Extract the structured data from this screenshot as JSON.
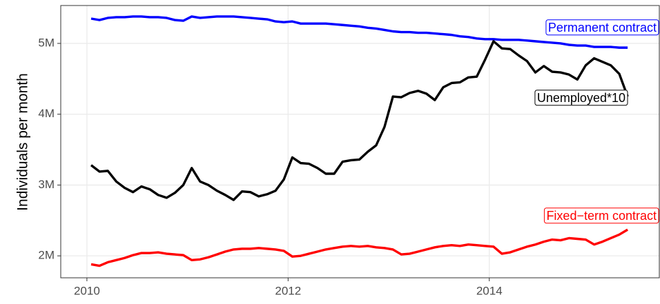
{
  "chart_data": {
    "type": "line",
    "y_label": "Individuals per month",
    "x": [
      2010.042,
      2010.125,
      2010.208,
      2010.292,
      2010.375,
      2010.458,
      2010.542,
      2010.625,
      2010.708,
      2010.792,
      2010.875,
      2010.958,
      2011.042,
      2011.125,
      2011.208,
      2011.292,
      2011.375,
      2011.458,
      2011.542,
      2011.625,
      2011.708,
      2011.792,
      2011.875,
      2011.958,
      2012.042,
      2012.125,
      2012.208,
      2012.292,
      2012.375,
      2012.458,
      2012.542,
      2012.625,
      2012.708,
      2012.792,
      2012.875,
      2012.958,
      2013.042,
      2013.125,
      2013.208,
      2013.292,
      2013.375,
      2013.458,
      2013.542,
      2013.625,
      2013.708,
      2013.792,
      2013.875,
      2013.958,
      2014.042,
      2014.125,
      2014.208,
      2014.292,
      2014.375,
      2014.458,
      2014.542,
      2014.625,
      2014.708,
      2014.792,
      2014.875,
      2014.958,
      2015.042,
      2015.125,
      2015.208,
      2015.292,
      2015.375
    ],
    "series": [
      {
        "name": "Permanent contract",
        "color": "#0000ff",
        "values": [
          5350000.0,
          5330000.0,
          5360000.0,
          5370000.0,
          5370000.0,
          5380000.0,
          5380000.0,
          5370000.0,
          5370000.0,
          5360000.0,
          5330000.0,
          5320000.0,
          5380000.0,
          5360000.0,
          5370000.0,
          5380000.0,
          5380000.0,
          5380000.0,
          5370000.0,
          5360000.0,
          5350000.0,
          5340000.0,
          5310000.0,
          5300000.0,
          5310000.0,
          5280000.0,
          5280000.0,
          5280000.0,
          5280000.0,
          5270000.0,
          5260000.0,
          5250000.0,
          5240000.0,
          5220000.0,
          5210000.0,
          5190000.0,
          5170000.0,
          5160000.0,
          5160000.0,
          5150000.0,
          5150000.0,
          5140000.0,
          5130000.0,
          5120000.0,
          5100000.0,
          5090000.0,
          5070000.0,
          5060000.0,
          5060000.0,
          5050000.0,
          5050000.0,
          5050000.0,
          5040000.0,
          5030000.0,
          5020000.0,
          5010000.0,
          5000000.0,
          4980000.0,
          4970000.0,
          4970000.0,
          4950000.0,
          4950000.0,
          4950000.0,
          4940000.0,
          4940000.0
        ]
      },
      {
        "name": "Unemployed*10",
        "color": "#000000",
        "values": [
          3280000.0,
          3190000.0,
          3200000.0,
          3050000.0,
          2960000.0,
          2900000.0,
          2980000.0,
          2940000.0,
          2860000.0,
          2820000.0,
          2890000.0,
          3000000.0,
          3240000.0,
          3050000.0,
          3000000.0,
          2920000.0,
          2860000.0,
          2790000.0,
          2910000.0,
          2900000.0,
          2840000.0,
          2870000.0,
          2920000.0,
          3080000.0,
          3390000.0,
          3310000.0,
          3300000.0,
          3240000.0,
          3160000.0,
          3160000.0,
          3330000.0,
          3350000.0,
          3360000.0,
          3470000.0,
          3560000.0,
          3820000.0,
          4250000.0,
          4240000.0,
          4300000.0,
          4330000.0,
          4290000.0,
          4200000.0,
          4380000.0,
          4440000.0,
          4450000.0,
          4520000.0,
          4530000.0,
          4770000.0,
          5030000.0,
          4930000.0,
          4920000.0,
          4830000.0,
          4750000.0,
          4590000.0,
          4680000.0,
          4600000.0,
          4590000.0,
          4560000.0,
          4490000.0,
          4690000.0,
          4790000.0,
          4740000.0,
          4690000.0,
          4570000.0,
          4250000.0
        ]
      },
      {
        "name": "Fixed−term contract",
        "color": "#ff0000",
        "values": [
          1880000.0,
          1860000.0,
          1910000.0,
          1940000.0,
          1970000.0,
          2010000.0,
          2040000.0,
          2040000.0,
          2050000.0,
          2030000.0,
          2020000.0,
          2010000.0,
          1940000.0,
          1950000.0,
          1980000.0,
          2020000.0,
          2060000.0,
          2090000.0,
          2100000.0,
          2100000.0,
          2110000.0,
          2100000.0,
          2090000.0,
          2070000.0,
          1990000.0,
          2000000.0,
          2030000.0,
          2060000.0,
          2090000.0,
          2110000.0,
          2130000.0,
          2140000.0,
          2130000.0,
          2140000.0,
          2120000.0,
          2110000.0,
          2090000.0,
          2020000.0,
          2030000.0,
          2060000.0,
          2090000.0,
          2120000.0,
          2140000.0,
          2150000.0,
          2140000.0,
          2160000.0,
          2150000.0,
          2140000.0,
          2130000.0,
          2030000.0,
          2050000.0,
          2090000.0,
          2130000.0,
          2160000.0,
          2200000.0,
          2230000.0,
          2220000.0,
          2250000.0,
          2240000.0,
          2230000.0,
          2160000.0,
          2200000.0,
          2250000.0,
          2300000.0,
          2370000.0
        ]
      }
    ],
    "xlim": [
      2009.74,
      2015.69
    ],
    "ylim": [
      1690000,
      5535000
    ],
    "xticks": [
      2010,
      2012,
      2014
    ],
    "yticks": [
      {
        "value": 2000000,
        "label": "2M"
      },
      {
        "value": 3000000,
        "label": "3M"
      },
      {
        "value": 4000000,
        "label": "4M"
      },
      {
        "value": 5000000,
        "label": "5M"
      }
    ],
    "grid": true
  }
}
